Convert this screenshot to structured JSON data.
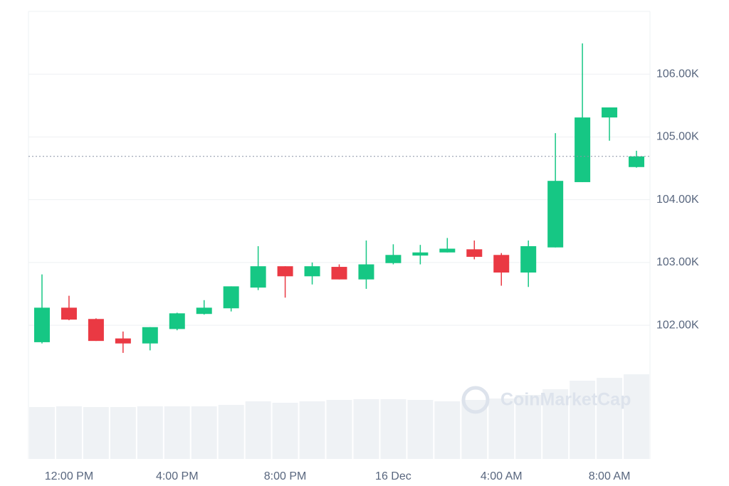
{
  "chart_data": {
    "type": "candlestick",
    "watermark": "CoinMarketCap",
    "categories": [
      null,
      "12:00 PM",
      null,
      null,
      null,
      "4:00 PM",
      null,
      null,
      null,
      "8:00 PM",
      null,
      null,
      null,
      "16 Dec",
      null,
      null,
      null,
      "4:00 AM",
      null,
      null,
      null,
      "8:00 AM",
      null
    ],
    "open": [
      101730,
      102280,
      102100,
      101790,
      101710,
      101940,
      102180,
      102270,
      102600,
      102940,
      102780,
      102930,
      102730,
      102990,
      103110,
      103160,
      103210,
      103120,
      102840,
      103240,
      104280,
      105310,
      104520
    ],
    "high": [
      102810,
      102470,
      102110,
      101900,
      101970,
      102200,
      102400,
      102620,
      103260,
      102940,
      103000,
      102970,
      103350,
      103290,
      103280,
      103390,
      103350,
      103150,
      103350,
      105060,
      106490,
      105470,
      104780
    ],
    "low": [
      101710,
      102080,
      101750,
      101560,
      101600,
      101920,
      102170,
      102220,
      102560,
      102440,
      102650,
      102730,
      102580,
      102970,
      102970,
      103160,
      103050,
      102630,
      102610,
      103240,
      104280,
      104940,
      104510
    ],
    "close": [
      102280,
      102090,
      101750,
      101710,
      101970,
      102190,
      102280,
      102620,
      102940,
      102780,
      102940,
      102730,
      102970,
      103120,
      103160,
      103220,
      103090,
      102840,
      103260,
      104300,
      105310,
      105470,
      104690
    ],
    "volume": [
      73,
      74,
      73,
      73,
      74,
      74,
      74,
      76,
      81,
      79,
      81,
      83,
      84,
      84,
      83,
      81,
      83,
      85,
      90,
      98,
      110,
      114,
      119
    ],
    "volume_lim": [
      0,
      120
    ],
    "last_price": 104690,
    "up_color": "#16c784",
    "down_color": "#ea3943",
    "volume_color": "#eff2f5",
    "ylim": [
      99870,
      107000
    ],
    "yticks": [
      {
        "value": 102000,
        "label": "102.00K"
      },
      {
        "value": 103000,
        "label": "103.00K"
      },
      {
        "value": 104000,
        "label": "104.00K"
      },
      {
        "value": 105000,
        "label": "105.00K"
      },
      {
        "value": 106000,
        "label": "106.00K"
      }
    ],
    "grid": true
  }
}
